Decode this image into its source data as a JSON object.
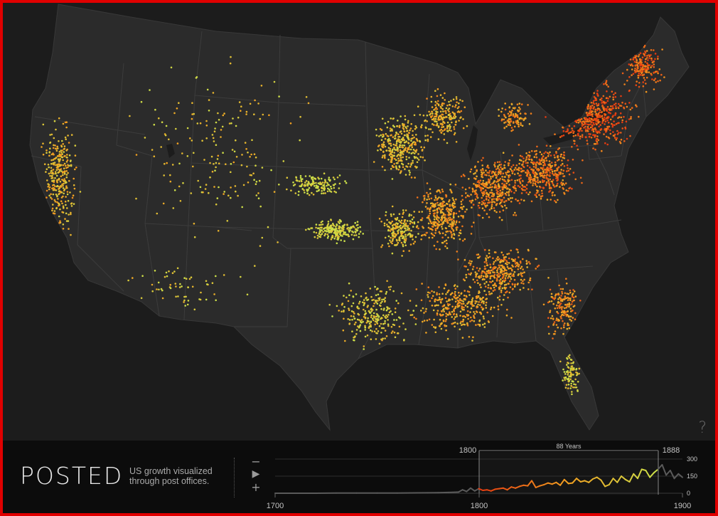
{
  "app": {
    "title": "POSTED",
    "tagline_line1": "US growth visualized",
    "tagline_line2": "through post offices."
  },
  "controls": {
    "zoom_out_symbol": "−",
    "play_symbol": "▶",
    "zoom_in_symbol": "+",
    "help_symbol": "?",
    "zoom_out_icon": "minus-icon",
    "play_icon": "play-icon",
    "zoom_in_icon": "plus-icon",
    "help_icon": "question-mark-icon"
  },
  "colors": {
    "background": "#1c1c1c",
    "land": "#2b2b2b",
    "borders": "#3a3a3a",
    "dot_new": "#cbe04a",
    "dot_mid": "#f2a020",
    "dot_old": "#e63a10",
    "frame": "#e00000"
  },
  "timeline": {
    "selection_label": "88 Years",
    "range_start_label": "1800",
    "range_end_label": "1888",
    "axis_ticks": [
      "1700",
      "1800",
      "1900"
    ],
    "y_ticks": [
      "0",
      "150",
      "300"
    ]
  },
  "chart_data": {
    "type": "line",
    "xlabel": "",
    "ylabel": "",
    "x_range": [
      1700,
      1900
    ],
    "ylim": [
      0,
      300
    ],
    "selection": [
      1800,
      1888
    ],
    "x": [
      1700,
      1710,
      1720,
      1730,
      1740,
      1750,
      1760,
      1770,
      1775,
      1780,
      1785,
      1790,
      1792,
      1794,
      1796,
      1798,
      1800,
      1802,
      1804,
      1806,
      1808,
      1810,
      1812,
      1814,
      1816,
      1818,
      1820,
      1822,
      1824,
      1826,
      1828,
      1830,
      1832,
      1834,
      1836,
      1838,
      1840,
      1842,
      1844,
      1846,
      1848,
      1850,
      1852,
      1854,
      1856,
      1858,
      1860,
      1862,
      1864,
      1866,
      1868,
      1870,
      1872,
      1874,
      1876,
      1878,
      1880,
      1882,
      1884,
      1886,
      1888,
      1890,
      1892,
      1894,
      1896,
      1898,
      1900
    ],
    "y": [
      0,
      0,
      0,
      1,
      1,
      2,
      2,
      3,
      4,
      5,
      7,
      10,
      30,
      15,
      45,
      20,
      40,
      25,
      30,
      20,
      35,
      40,
      45,
      30,
      55,
      45,
      60,
      70,
      65,
      110,
      50,
      65,
      75,
      90,
      80,
      95,
      70,
      120,
      85,
      90,
      130,
      100,
      110,
      95,
      125,
      140,
      115,
      60,
      75,
      130,
      95,
      150,
      120,
      100,
      170,
      130,
      210,
      200,
      140,
      180,
      210,
      250,
      160,
      200,
      130,
      170,
      140
    ]
  }
}
